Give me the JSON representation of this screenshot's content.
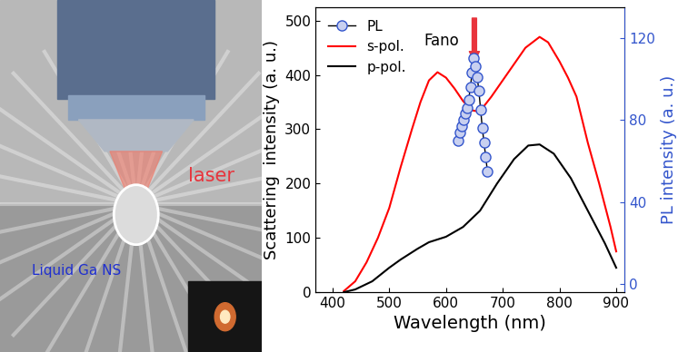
{
  "illustration": {
    "beam_label": "laser",
    "particle_label": "Liquid Ga NS"
  },
  "chart_data": {
    "type": "line",
    "x_label": "Wavelength (nm)",
    "y_label": "Scattering  intensity (a. u.)",
    "y2_label": "PL intensity (a. u.)",
    "xlim": [
      370,
      915
    ],
    "xticks": [
      400,
      500,
      600,
      700,
      800,
      900
    ],
    "ylim": [
      0,
      525
    ],
    "yticks": [
      0,
      100,
      200,
      300,
      400,
      500
    ],
    "y2lim": [
      -4,
      135
    ],
    "y2ticks": [
      0,
      40,
      80,
      120
    ],
    "legend": "upper left",
    "annotations": [
      {
        "text": "Fano",
        "x": 650,
        "color": "#e8343c"
      }
    ],
    "series": [
      {
        "name": "PL",
        "type": "line",
        "axis": "y2",
        "color": "#3355cc",
        "marker": "o",
        "line_style": "solid",
        "x": [
          622,
          625,
          628,
          631,
          634,
          637,
          640,
          643,
          646,
          649,
          652,
          655,
          658,
          661,
          664,
          667,
          670,
          673
        ],
        "values": [
          70,
          74,
          77,
          80,
          83,
          86,
          90,
          96,
          103,
          110,
          106,
          101,
          94,
          85,
          76,
          69,
          62,
          55
        ]
      },
      {
        "name": "s-pol.",
        "type": "line",
        "color": "#ff0000",
        "line_style": "solid",
        "x": [
          420,
          440,
          460,
          480,
          500,
          520,
          540,
          555,
          570,
          585,
          600,
          615,
          630,
          645,
          655,
          665,
          680,
          700,
          720,
          740,
          755,
          765,
          780,
          800,
          815,
          830,
          850,
          870,
          890,
          900
        ],
        "values": [
          2,
          20,
          55,
          100,
          155,
          230,
          300,
          350,
          390,
          405,
          395,
          375,
          352,
          335,
          333,
          340,
          360,
          390,
          420,
          450,
          462,
          470,
          460,
          425,
          395,
          360,
          275,
          200,
          120,
          75
        ]
      },
      {
        "name": "p-pol.",
        "type": "line",
        "color": "#000000",
        "line_style": "solid",
        "x": [
          420,
          440,
          470,
          500,
          520,
          550,
          570,
          600,
          630,
          660,
          690,
          720,
          745,
          765,
          790,
          820,
          850,
          880,
          900
        ],
        "values": [
          0,
          5,
          20,
          45,
          60,
          80,
          92,
          102,
          120,
          150,
          200,
          245,
          270,
          272,
          255,
          210,
          150,
          90,
          45
        ]
      }
    ]
  }
}
